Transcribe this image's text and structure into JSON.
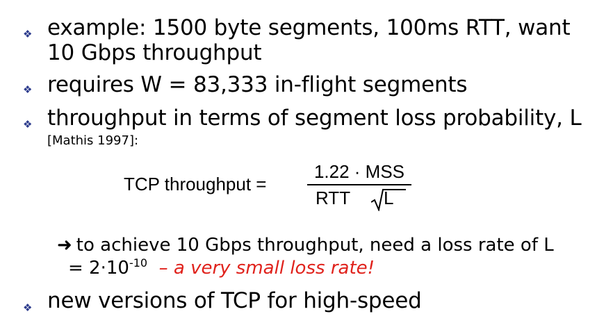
{
  "bullets": [
    {
      "line1": "example: 1500 byte segments, 100ms RTT, want",
      "line2": "10 Gbps throughput"
    },
    {
      "line1": "requires W = 83,333 in-flight segments"
    },
    {
      "line1": "throughput in terms of segment loss probability, L",
      "citation": "[Mathis 1997]:"
    },
    {
      "line1": "new versions of TCP for high-speed"
    }
  ],
  "formula": {
    "lhs": "TCP throughput =",
    "numerator": "1.22 · MSS",
    "denominator_rtt": "RTT",
    "denominator_var": "L"
  },
  "sub_point": {
    "arrow": "➜",
    "line1": "to achieve 10 Gbps throughput, need a loss rate of L",
    "line2_prefix": "= 2·10",
    "exponent": "-10",
    "emphasis": "– a very small loss rate!"
  },
  "bullet_glyph": "❖",
  "colors": {
    "bullet": "#2b3a8c",
    "emphasis": "#e0221c"
  }
}
